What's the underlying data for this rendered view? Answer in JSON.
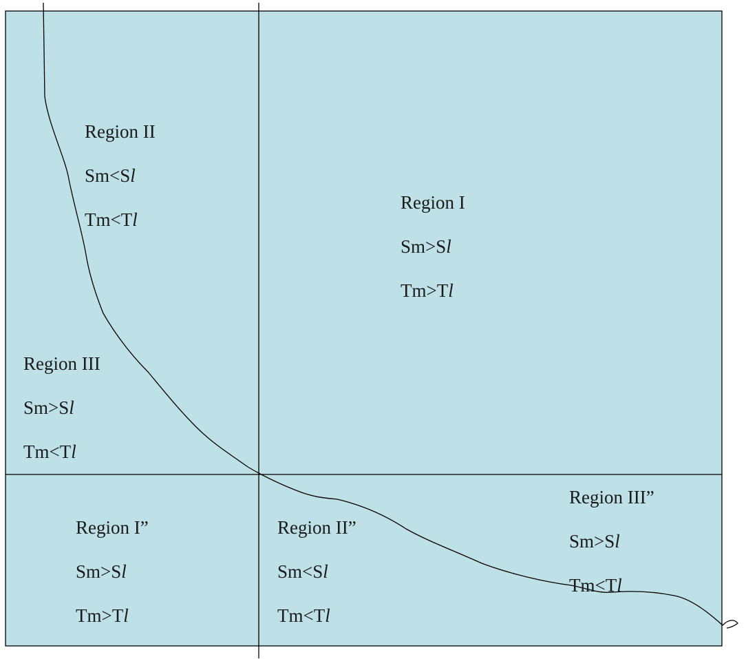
{
  "colors": {
    "fill": "#bde1e6",
    "stroke": "#000000",
    "text": "#1a1a1a"
  },
  "regions": {
    "region_1": {
      "name": "Region I",
      "cond_s": "Sm>S",
      "cond_t": "Tm>T",
      "suffix": "l"
    },
    "region_2": {
      "name": "Region II",
      "cond_s": "Sm<S",
      "cond_t": "Tm<T",
      "suffix": "l"
    },
    "region_3": {
      "name": "Region III",
      "cond_s": "Sm>S",
      "cond_t": "Tm<T",
      "suffix": "l"
    },
    "region_1pp": {
      "name": "Region I”",
      "cond_s": "Sm>S",
      "cond_t": "Tm>T",
      "suffix": "l"
    },
    "region_2pp": {
      "name": "Region II”",
      "cond_s": "Sm<S",
      "cond_t": "Tm<T",
      "suffix": "l"
    },
    "region_3pp": {
      "name": "Region III”",
      "cond_s": "Sm>S",
      "cond_t": "Tm<T",
      "suffix": "l"
    }
  }
}
